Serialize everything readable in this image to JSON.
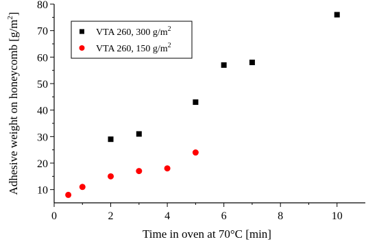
{
  "chart_data": {
    "type": "scatter",
    "xlabel": "Time in oven at 70°C [min]",
    "ylabel_main": "Adhesive weight on honeycomb [g/m",
    "ylabel_sup": "2",
    "ylabel_close": "]",
    "xlim": [
      0,
      11
    ],
    "ylim": [
      5,
      80
    ],
    "x_ticks": [
      "0",
      "2",
      "4",
      "6",
      "8",
      "10"
    ],
    "x_tick_values": [
      0,
      2,
      4,
      6,
      8,
      10
    ],
    "y_ticks": [
      "10",
      "20",
      "30",
      "40",
      "50",
      "60",
      "70",
      "80"
    ],
    "y_tick_values": [
      10,
      20,
      30,
      40,
      50,
      60,
      70,
      80
    ],
    "grid": false,
    "legend_position": "top-left",
    "series": [
      {
        "name": "VTA 260, 300 g/m",
        "name_sup": "2",
        "marker": "square",
        "color": "#000000",
        "x": [
          2,
          3,
          5,
          6,
          7,
          10
        ],
        "y": [
          29,
          31,
          43,
          57,
          58,
          76
        ]
      },
      {
        "name": "VTA 260, 150 g/m",
        "name_sup": "2",
        "marker": "circle",
        "color": "#ff0000",
        "x": [
          0.5,
          1,
          2,
          3,
          4,
          5
        ],
        "y": [
          8,
          11,
          15,
          17,
          18,
          24
        ]
      }
    ]
  }
}
